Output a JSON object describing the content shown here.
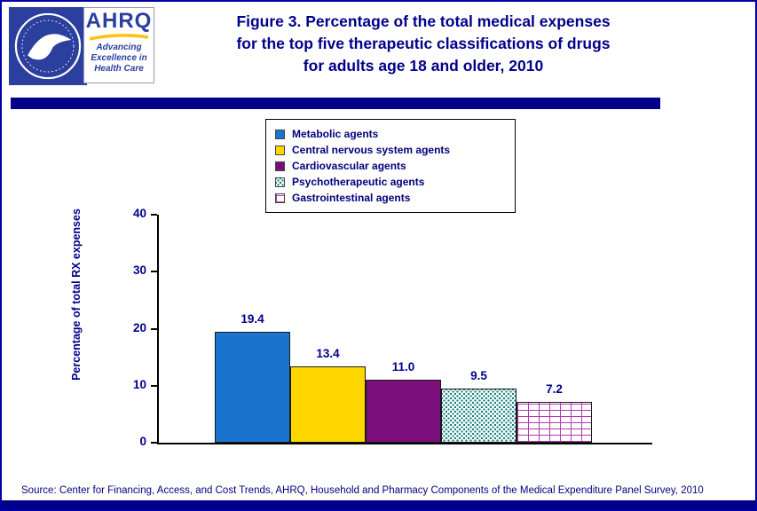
{
  "header": {
    "title_lines": [
      "Figure 3. Percentage of the total medical expenses",
      "for the top five therapeutic classifications of drugs",
      "for adults age 18 and older, 2010"
    ],
    "logo": {
      "acronym": "AHRQ",
      "tagline_lines": [
        "Advancing",
        "Excellence in",
        "Health Care"
      ]
    }
  },
  "chart_data": {
    "type": "bar",
    "title": "Figure 3. Percentage of the total medical expenses for the top five therapeutic classifications of drugs for adults age 18 and older, 2010",
    "categories": [
      "Metabolic agents",
      "Central nervous system agents",
      "Cardiovascular agents",
      "Psychotherapeutic agents",
      "Gastrointestinal agents"
    ],
    "values": [
      19.4,
      13.4,
      11.0,
      9.5,
      7.2
    ],
    "value_labels": [
      "19.4",
      "13.4",
      "11.0",
      "9.5",
      "7.2"
    ],
    "bar_styles": [
      "solid-blue",
      "solid-gold",
      "solid-purple",
      "dots-teal",
      "brick-magenta"
    ],
    "xlabel": "",
    "ylabel": "Percentage of total RX expenses",
    "ylim": [
      0,
      40
    ],
    "yticks": [
      0,
      10,
      20,
      30,
      40
    ],
    "grid": false,
    "legend_position": "top-center",
    "colors": {
      "blue": "#1874CD",
      "gold": "#FFD700",
      "purple": "#7A0E7A",
      "teal": "#0E7D7D",
      "magenta": "#B03AB0",
      "navy": "#00008B"
    }
  },
  "source": {
    "text": "Source: Center for Financing, Access, and Cost Trends, AHRQ,  Household and Pharmacy Components of the Medical Expenditure Panel Survey,  2010"
  }
}
